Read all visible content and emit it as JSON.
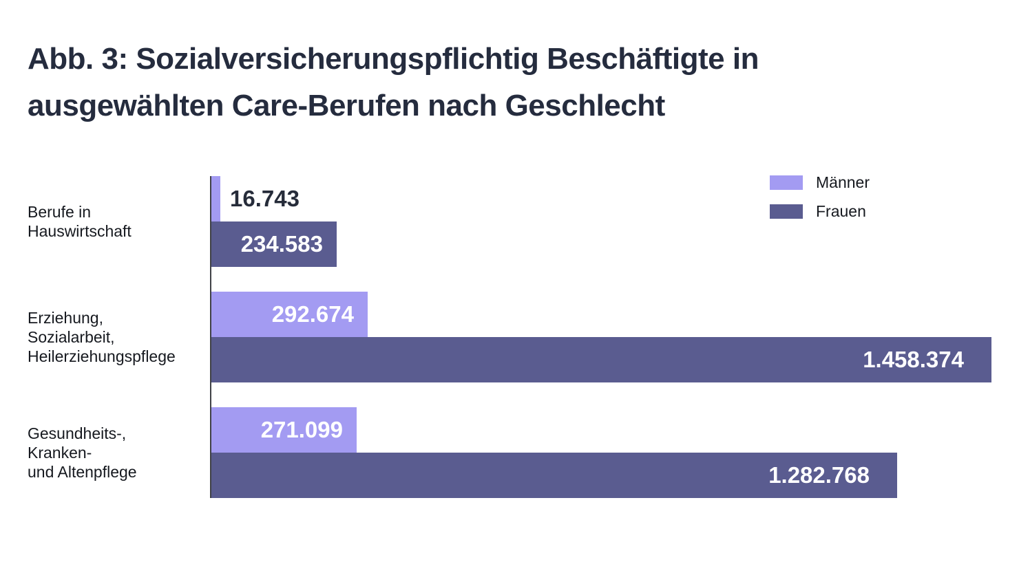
{
  "title_lines": [
    "Abb. 3: Sozialversicherungspflichtig Beschäftigte in",
    "ausgewählten Care-Berufen nach Geschlecht"
  ],
  "colors": {
    "title_text": "#252c3e",
    "body_text": "#16191f",
    "axis_line": "#3f4146",
    "maenner_bar": "#a39bf2",
    "frauen_bar": "#5a5c90",
    "value_label_inside": "#ffffff",
    "value_label_outside": "#262c3a"
  },
  "legend": {
    "items": [
      {
        "label": "Männer",
        "color": "#a39bf2"
      },
      {
        "label": "Frauen",
        "color": "#5a5c90"
      }
    ],
    "position": "top-right"
  },
  "chart_data": {
    "type": "bar",
    "orientation": "horizontal",
    "title": "Abb. 3: Sozialversicherungspflichtig Beschäftigte in ausgewählten Care-Berufen nach Geschlecht",
    "categories": [
      [
        "Berufe in",
        "Hauswirtschaft"
      ],
      [
        "Erziehung,",
        "Sozialarbeit,",
        "Heilerziehungspflege"
      ],
      [
        "Gesundheits-,",
        "Kranken-",
        "und Altenpflege"
      ]
    ],
    "series": [
      {
        "name": "Männer",
        "color": "#a39bf2",
        "values": [
          16743,
          292674,
          271099
        ],
        "display": [
          "16.743",
          "292.674",
          "271.099"
        ]
      },
      {
        "name": "Frauen",
        "color": "#5a5c90",
        "values": [
          234583,
          1458374,
          1282768
        ],
        "display": [
          "234.583",
          "1.458.374",
          "1.282.768"
        ]
      }
    ],
    "xlim": [
      0,
      1500000
    ],
    "xlabel": "",
    "ylabel": "",
    "grid": false,
    "legend_position": "top-right",
    "value_label_color_inside": "#ffffff",
    "value_label_color_outside": "#262c3a"
  }
}
